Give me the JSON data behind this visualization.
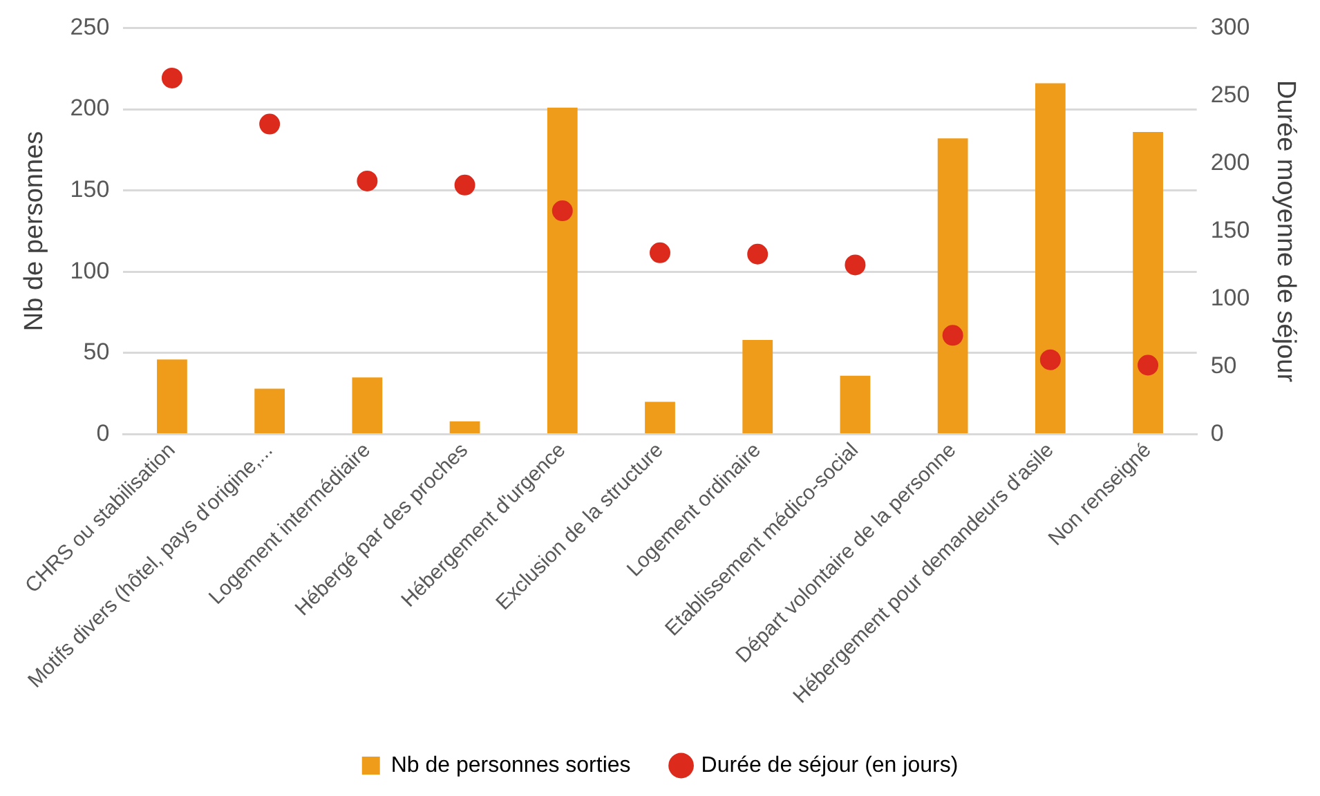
{
  "chart_data": {
    "type": "bar",
    "categories": [
      "CHRS ou stabilisation",
      "Motifs divers (hôtel, pays d'origine,...",
      "Logement intermédiaire",
      "Hébergé par des proches",
      "Hébergement d'urgence",
      "Exclusion de la structure",
      "Logement ordinaire",
      "Etablissement médico-social",
      "Départ volontaire de la personne",
      "Hébergement pour demandeurs d'asile",
      "Non renseigné"
    ],
    "series": [
      {
        "name": "Nb de personnes sorties",
        "color": "#f09c1b",
        "values": [
          46,
          28,
          35,
          8,
          201,
          20,
          58,
          36,
          182,
          216,
          186
        ]
      },
      {
        "name": "Durée de séjour (en jours)",
        "type": "scatter",
        "axis": "y2",
        "color": "#dc2a1c",
        "marker": "circle",
        "x": [
          "CHRS ou stabilisation",
          "Motifs divers (hôtel, pays d'origine,...",
          "Logement intermédiaire",
          "Hébergé par des proches",
          "Hébergement d'urgence",
          "Exclusion de la structure",
          "Logement ordinaire",
          "Etablissement médico-social",
          "Départ volontaire de la personne",
          "Hébergement pour demandeurs d'asile",
          "Non renseigné"
        ],
        "values": [
          263,
          229,
          187,
          184,
          165,
          134,
          133,
          125,
          73,
          55,
          51
        ]
      }
    ],
    "ylabel": "Nb de personnes",
    "y2label": "Durée moyenne de séjour",
    "ylim": [
      0,
      250
    ],
    "yticks": [
      0,
      50,
      100,
      150,
      200,
      250
    ],
    "y2lim": [
      0,
      300
    ],
    "y2ticks": [
      0,
      50,
      100,
      150,
      200,
      250,
      300
    ],
    "grid": "y",
    "legend": "bottom"
  }
}
